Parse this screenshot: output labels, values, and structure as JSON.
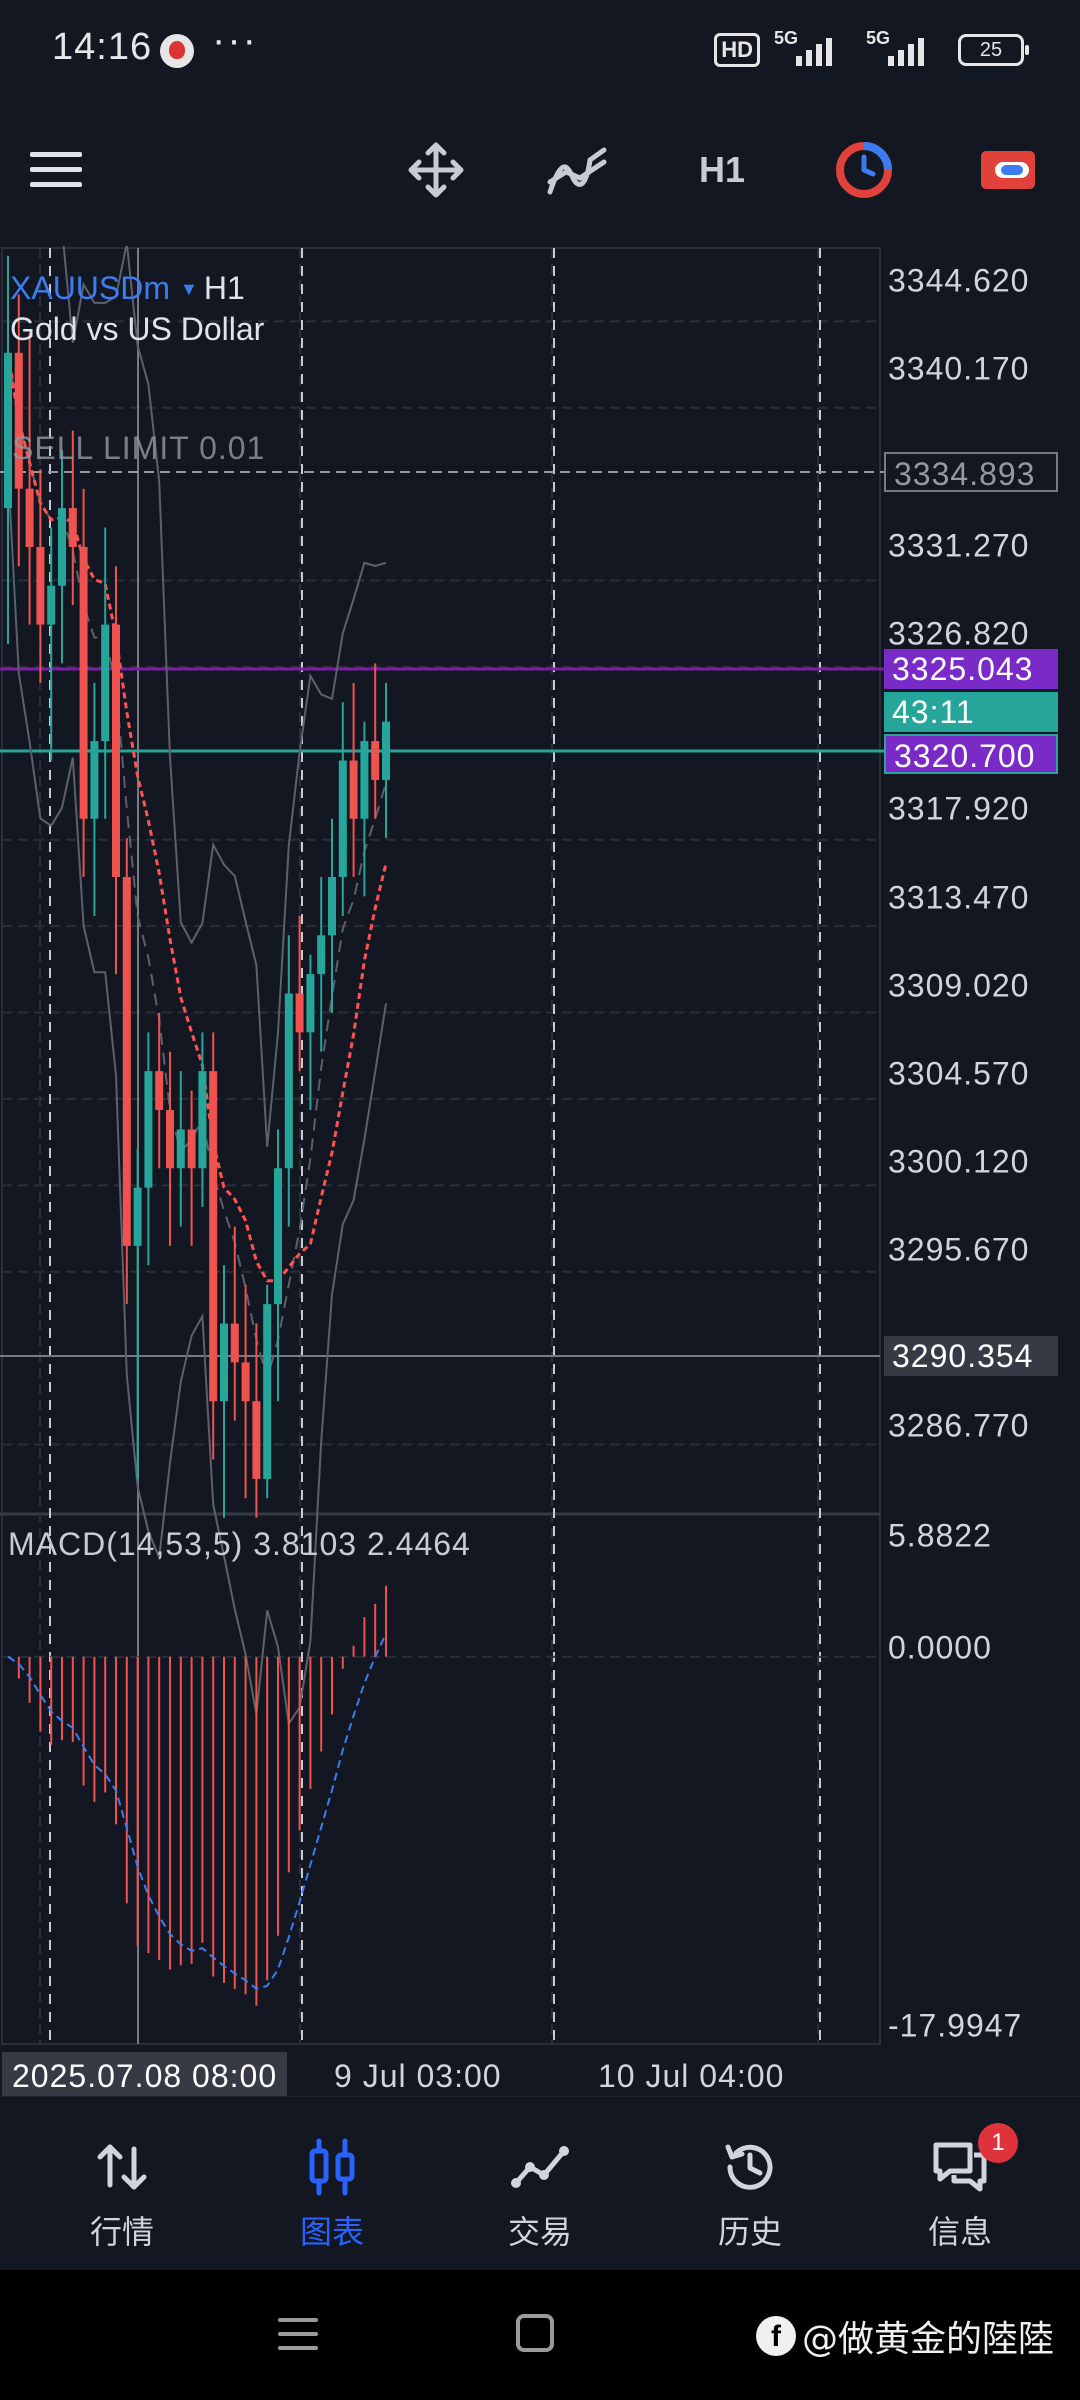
{
  "status_bar": {
    "time": "14:16",
    "more": "···",
    "hd_badge": "HD",
    "network_1": "5G",
    "network_2": "5G",
    "battery": "25"
  },
  "toolbar": {
    "timeframe": "H1",
    "icons": [
      "menu-icon",
      "crosshair-move-icon",
      "indicators-icon",
      "clock-icon",
      "account-icon"
    ]
  },
  "chart": {
    "symbol": "XAUUSDm",
    "timeframe": "H1",
    "description": "Gold vs US Dollar",
    "order_line": "SELL LIMIT 0.01",
    "price_ticks": [
      "3344.620",
      "3340.170",
      "3331.270",
      "3326.820",
      "3317.920",
      "3313.470",
      "3309.020",
      "3304.570",
      "3300.120",
      "3295.670",
      "3286.770"
    ],
    "price_tags": {
      "sell_limit": "3334.893",
      "upper": "3325.043",
      "timer": "43:11",
      "lower": "3320.700",
      "crosshair": "3290.354"
    },
    "macd": {
      "legend": "MACD(14,53,5) 3.8103 2.4464",
      "ticks": [
        "5.8822",
        "0.0000",
        "-17.9947"
      ]
    },
    "time_axis": {
      "crosshair": "2025.07.08 08:00",
      "labels": [
        "9 Jul 03:00",
        "10 Jul 04:00"
      ]
    },
    "colors": {
      "up": "#26a69a",
      "down": "#ef5350",
      "ma": "#ff5252",
      "order_line": "#7b1fa2",
      "current_line": "#26a69a"
    }
  },
  "chart_data": {
    "type": "candlestick",
    "symbol": "XAUUSDm",
    "timeframe": "H1",
    "ylim": [
      3283.5,
      3348.5
    ],
    "candles": [
      [
        3335,
        3348,
        3328,
        3343
      ],
      [
        3343,
        3346,
        3332,
        3336
      ],
      [
        3336,
        3344,
        3329,
        3333
      ],
      [
        3333,
        3337,
        3326,
        3329
      ],
      [
        3329,
        3334,
        3322,
        3331
      ],
      [
        3331,
        3338,
        3327,
        3335
      ],
      [
        3335,
        3339,
        3330,
        3333
      ],
      [
        3333,
        3336,
        3316,
        3319
      ],
      [
        3319,
        3326,
        3314,
        3323
      ],
      [
        3323,
        3334,
        3319,
        3329
      ],
      [
        3329,
        3332,
        3311,
        3316
      ],
      [
        3316,
        3318,
        3294,
        3297
      ],
      [
        3297,
        3302,
        3285,
        3300
      ],
      [
        3300,
        3308,
        3296,
        3306
      ],
      [
        3306,
        3309,
        3301,
        3304
      ],
      [
        3304,
        3307,
        3297,
        3301
      ],
      [
        3301,
        3306,
        3298,
        3303
      ],
      [
        3303,
        3305,
        3297,
        3301
      ],
      [
        3301,
        3308,
        3299,
        3306
      ],
      [
        3306,
        3308,
        3286,
        3289
      ],
      [
        3289,
        3296,
        3283,
        3293
      ],
      [
        3293,
        3298,
        3288,
        3291
      ],
      [
        3291,
        3295,
        3284,
        3289
      ],
      [
        3289,
        3293,
        3283,
        3285
      ],
      [
        3285,
        3295,
        3284,
        3294
      ],
      [
        3294,
        3303,
        3289,
        3301
      ],
      [
        3301,
        3313,
        3298,
        3310
      ],
      [
        3310,
        3314,
        3306,
        3308
      ],
      [
        3308,
        3312,
        3304,
        3311
      ],
      [
        3311,
        3316,
        3307,
        3313
      ],
      [
        3313,
        3319,
        3309,
        3316
      ],
      [
        3316,
        3325,
        3314,
        3322
      ],
      [
        3322,
        3326,
        3316,
        3319
      ],
      [
        3319,
        3324,
        3315,
        3323
      ],
      [
        3323,
        3327,
        3319,
        3321
      ],
      [
        3321,
        3326,
        3318,
        3324
      ]
    ],
    "macd_range": [
      -17.9947,
      5.8822
    ]
  },
  "bottom_nav": {
    "items": [
      {
        "label": "行情",
        "icon": "quotes-icon"
      },
      {
        "label": "图表",
        "icon": "chart-icon"
      },
      {
        "label": "交易",
        "icon": "trade-icon"
      },
      {
        "label": "历史",
        "icon": "history-icon"
      },
      {
        "label": "信息",
        "icon": "messages-icon",
        "badge": "1"
      }
    ],
    "active": 1
  },
  "watermark": {
    "logo": "f",
    "text": "@做黄金的陸陸"
  }
}
